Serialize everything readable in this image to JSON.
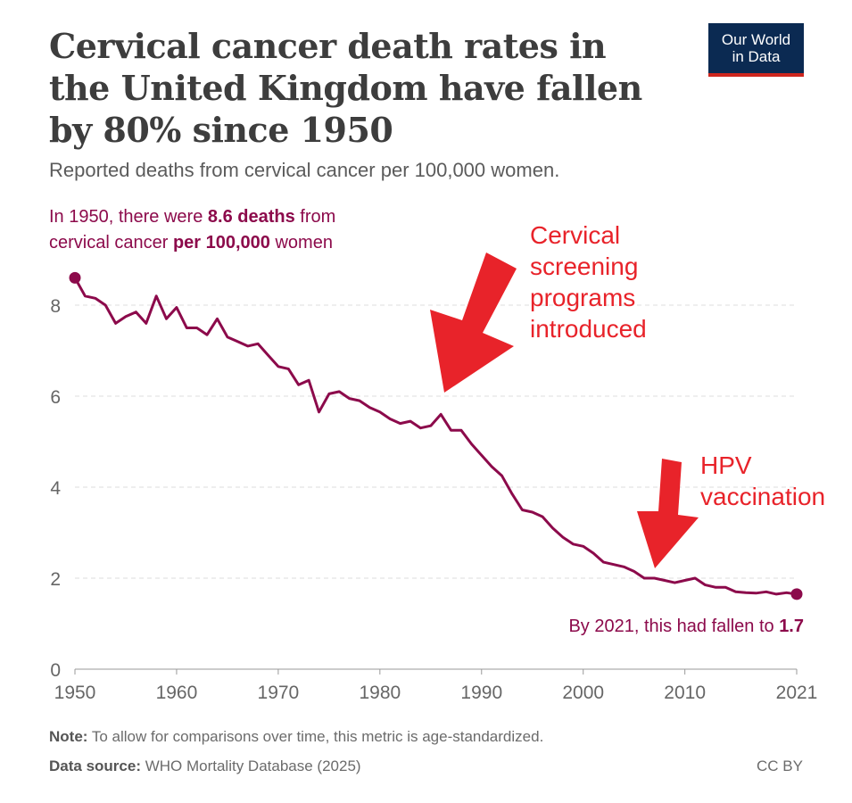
{
  "header": {
    "title": "Cervical cancer death rates in the United Kingdom have fallen by 80% since 1950",
    "subtitle": "Reported deaths from cervical cancer per 100,000 women."
  },
  "logo": {
    "line1": "Our World",
    "line2": "in Data"
  },
  "footer": {
    "note_label": "Note:",
    "note_text": " To allow for comparisons over time, this metric is age-standardized.",
    "source_label": "Data source:",
    "source_text": " WHO Mortality Database (2025)",
    "license": "CC BY"
  },
  "colors": {
    "line": "#8c0a4b",
    "annotation_red": "#e8232a",
    "grid": "#dddddd",
    "axis_text": "#666666",
    "logo_bg": "#0b2a52",
    "logo_accent": "#ce261e"
  },
  "chart_data": {
    "type": "line",
    "title": "Cervical cancer death rates in the United Kingdom have fallen by 80% since 1950",
    "ylabel": "Reported deaths from cervical cancer per 100,000 women",
    "xlabel": "",
    "xlim": [
      1950,
      2021
    ],
    "ylim": [
      0,
      8.6
    ],
    "yticks": [
      0,
      2,
      4,
      6,
      8
    ],
    "xticks": [
      1950,
      1960,
      1970,
      1980,
      1990,
      2000,
      2010,
      2021
    ],
    "grid": true,
    "series": [
      {
        "name": "United Kingdom",
        "x": [
          1950,
          1951,
          1952,
          1953,
          1954,
          1955,
          1956,
          1957,
          1958,
          1959,
          1960,
          1961,
          1962,
          1963,
          1964,
          1965,
          1966,
          1967,
          1968,
          1969,
          1970,
          1971,
          1972,
          1973,
          1974,
          1975,
          1976,
          1977,
          1978,
          1979,
          1980,
          1981,
          1982,
          1983,
          1984,
          1985,
          1986,
          1987,
          1988,
          1989,
          1990,
          1991,
          1992,
          1993,
          1994,
          1995,
          1996,
          1997,
          1998,
          1999,
          2000,
          2001,
          2002,
          2003,
          2004,
          2005,
          2006,
          2007,
          2008,
          2009,
          2010,
          2011,
          2012,
          2013,
          2014,
          2015,
          2016,
          2017,
          2018,
          2019,
          2020,
          2021
        ],
        "y": [
          8.6,
          8.2,
          8.15,
          8.0,
          7.6,
          7.75,
          7.85,
          7.6,
          8.2,
          7.7,
          7.95,
          7.5,
          7.5,
          7.35,
          7.7,
          7.3,
          7.2,
          7.1,
          7.15,
          6.9,
          6.65,
          6.6,
          6.25,
          6.35,
          5.65,
          6.05,
          6.1,
          5.95,
          5.9,
          5.75,
          5.65,
          5.5,
          5.4,
          5.45,
          5.3,
          5.35,
          5.6,
          5.25,
          5.25,
          4.95,
          4.7,
          4.45,
          4.25,
          3.85,
          3.5,
          3.45,
          3.35,
          3.1,
          2.9,
          2.75,
          2.7,
          2.55,
          2.35,
          2.3,
          2.25,
          2.15,
          2.0,
          2.0,
          1.95,
          1.9,
          1.95,
          2.0,
          1.85,
          1.8,
          1.8,
          1.7,
          1.68,
          1.67,
          1.7,
          1.65,
          1.68,
          1.65
        ]
      }
    ],
    "annotations": {
      "start_prefix": "In 1950, there were ",
      "start_bold1": "8.6 deaths",
      "start_mid": " from",
      "start_line2_prefix": "cervical cancer ",
      "start_bold2": "per 100,000",
      "start_suffix": " women",
      "end_prefix": "By 2021, this had fallen to ",
      "end_bold": "1.7",
      "screening": [
        "Cervical",
        "screening",
        "programs",
        "introduced"
      ],
      "hpv": [
        "HPV",
        "vaccination"
      ]
    }
  }
}
